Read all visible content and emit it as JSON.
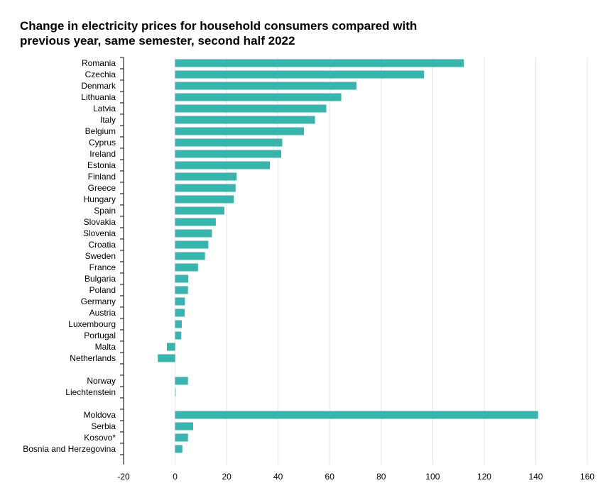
{
  "chart_data": {
    "type": "bar",
    "orientation": "horizontal",
    "title_lines": [
      "Change in electricity prices for household consumers compared with",
      "previous year, same semester, second half 2022"
    ],
    "xlim": [
      -20,
      160
    ],
    "xticks": [
      -20,
      0,
      20,
      40,
      60,
      80,
      100,
      120,
      140,
      160
    ],
    "grid": true,
    "bar_color": "#3ab3ad",
    "categories": [
      "Romania",
      "Czechia",
      "Denmark",
      "Lithuania",
      "Latvia",
      "Italy",
      "Belgium",
      "Cyprus",
      "Ireland",
      "Estonia",
      "Finland",
      "Greece",
      "Hungary",
      "Spain",
      "Slovakia",
      "Slovenia",
      "Croatia",
      "Sweden",
      "France",
      "Bulgaria",
      "Poland",
      "Germany",
      "Austria",
      "Luxembourg",
      "Portugal",
      "Malta",
      "Netherlands",
      "",
      "Norway",
      "Liechtenstein",
      "",
      "Moldova",
      "Serbia",
      "Kosovo*",
      "Bosnia and Herzegovina"
    ],
    "values": [
      112.1,
      96.6,
      70.4,
      64.5,
      58.7,
      54.3,
      50.0,
      41.6,
      41.2,
      36.8,
      23.9,
      23.5,
      22.8,
      19.1,
      15.8,
      14.3,
      12.9,
      11.6,
      8.9,
      5.1,
      5.0,
      3.8,
      3.7,
      2.6,
      2.4,
      -3.2,
      -6.7,
      null,
      5.0,
      0.2,
      null,
      140.9,
      7.0,
      5.0,
      2.8
    ]
  }
}
